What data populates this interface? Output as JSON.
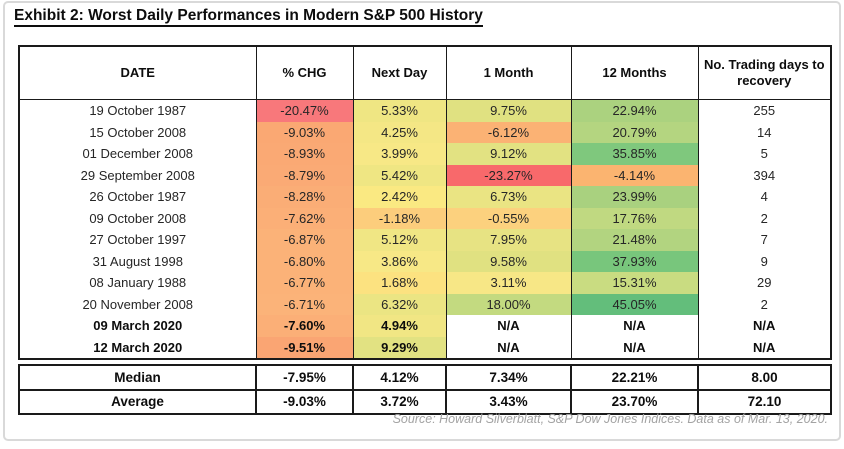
{
  "title": "Exhibit 2:  Worst Daily Performances in Modern S&P 500 History",
  "table": {
    "columns": {
      "date": "DATE",
      "chg": "% CHG",
      "next_day": "Next Day",
      "one_month": "1 Month",
      "twelve_months": "12 Months",
      "recovery": "No. Trading days to recovery"
    },
    "rows": [
      {
        "date": "19 October 1987",
        "chg": "-20.47%",
        "next_day": "5.33%",
        "one_month": "9.75%",
        "twelve_months": "22.94%",
        "recovery": "255",
        "colors": {
          "chg": "#F8787B",
          "next_day": "#EFE683",
          "one_month": "#E0E181",
          "twelve_months": "#ABD27F"
        }
      },
      {
        "date": "15 October 2008",
        "chg": "-9.03%",
        "next_day": "4.25%",
        "one_month": "-6.12%",
        "twelve_months": "20.79%",
        "recovery": "14",
        "colors": {
          "chg": "#FAA873",
          "next_day": "#F4E785",
          "one_month": "#FBB274",
          "twelve_months": "#B4D580"
        }
      },
      {
        "date": "01 December 2008",
        "chg": "-8.93%",
        "next_day": "3.99%",
        "one_month": "9.12%",
        "twelve_months": "35.85%",
        "recovery": "5",
        "colors": {
          "chg": "#FAA974",
          "next_day": "#F7E886",
          "one_month": "#E2E282",
          "twelve_months": "#7FC87D"
        }
      },
      {
        "date": "29 September 2008",
        "chg": "-8.79%",
        "next_day": "5.42%",
        "one_month": "-23.27%",
        "twelve_months": "-4.14%",
        "recovery": "394",
        "colors": {
          "chg": "#FAAA75",
          "next_day": "#EFE683",
          "one_month": "#F8696B",
          "twelve_months": "#FBB470"
        }
      },
      {
        "date": "26 October 1987",
        "chg": "-8.28%",
        "next_day": "2.42%",
        "one_month": "6.73%",
        "twelve_months": "23.99%",
        "recovery": "4",
        "colors": {
          "chg": "#FAAD76",
          "next_day": "#FAE982",
          "one_month": "#EAE483",
          "twelve_months": "#A9D17F"
        }
      },
      {
        "date": "09 October 2008",
        "chg": "-7.62%",
        "next_day": "-1.18%",
        "one_month": "-0.55%",
        "twelve_months": "17.76%",
        "recovery": "2",
        "colors": {
          "chg": "#FBAF77",
          "next_day": "#FCCD7C",
          "one_month": "#FCD17E",
          "twelve_months": "#C0D981"
        }
      },
      {
        "date": "27 October 1997",
        "chg": "-6.87%",
        "next_day": "5.12%",
        "one_month": "7.95%",
        "twelve_months": "21.48%",
        "recovery": "7",
        "colors": {
          "chg": "#FBB278",
          "next_day": "#F0E684",
          "one_month": "#E7E383",
          "twelve_months": "#B2D480"
        }
      },
      {
        "date": "31 August 1998",
        "chg": "-6.80%",
        "next_day": "3.86%",
        "one_month": "9.58%",
        "twelve_months": "37.93%",
        "recovery": "9",
        "colors": {
          "chg": "#FBB278",
          "next_day": "#F7E886",
          "one_month": "#E0E181",
          "twelve_months": "#78C67C"
        }
      },
      {
        "date": "08 January 1988",
        "chg": "-6.77%",
        "next_day": "1.68%",
        "one_month": "3.11%",
        "twelve_months": "15.31%",
        "recovery": "29",
        "colors": {
          "chg": "#FBB278",
          "next_day": "#FCE280",
          "one_month": "#F7E786",
          "twelve_months": "#C9DC81"
        }
      },
      {
        "date": "20 November 2008",
        "chg": "-6.71%",
        "next_day": "6.32%",
        "one_month": "18.00%",
        "twelve_months": "45.05%",
        "recovery": "2",
        "colors": {
          "chg": "#FBB379",
          "next_day": "#EBE583",
          "one_month": "#C3DA80",
          "twelve_months": "#63BE7B"
        }
      },
      {
        "date": "09 March 2020",
        "chg": "-7.60%",
        "next_day": "4.94%",
        "one_month": "N/A",
        "twelve_months": "N/A",
        "recovery": "N/A",
        "colors": {
          "chg": "#FBAF77",
          "next_day": "#F1E684"
        }
      },
      {
        "date": "12 March 2020",
        "chg": "-9.51%",
        "next_day": "9.29%",
        "one_month": "N/A",
        "twelve_months": "N/A",
        "recovery": "N/A",
        "colors": {
          "chg": "#FAA573",
          "next_day": "#E2E282"
        }
      }
    ]
  },
  "summary": {
    "rows": [
      {
        "label": "Median",
        "chg": "-7.95%",
        "next_day": "4.12%",
        "one_month": "7.34%",
        "twelve_months": "22.21%",
        "recovery": "8.00"
      },
      {
        "label": "Average",
        "chg": "-9.03%",
        "next_day": "3.72%",
        "one_month": "3.43%",
        "twelve_months": "23.70%",
        "recovery": "72.10"
      }
    ]
  },
  "source": "Source: Howard Silverblatt, S&P Dow Jones Indices. Data as of Mar. 13, 2020."
}
